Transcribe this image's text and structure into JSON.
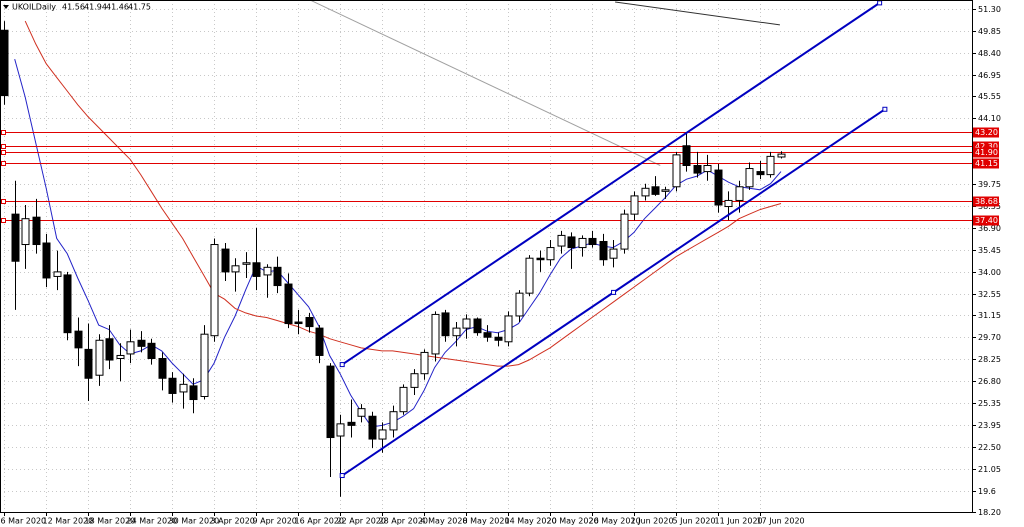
{
  "chart_data": {
    "type": "candlestick",
    "title": "UKOILDaily",
    "candles": {
      "open": [
        49.9,
        37.8,
        35.8,
        37.6,
        35.9,
        33.7,
        33.8,
        30.1,
        28.9,
        27.2,
        29.6,
        28.3,
        28.6,
        29.5,
        29.3,
        28.3,
        27.0,
        26.1,
        26.5,
        25.8,
        29.8,
        35.5,
        34.0,
        34.5,
        34.6,
        33.8,
        34.3,
        33.2,
        30.7,
        31.0,
        30.3,
        27.8,
        23.2,
        24.1,
        24.5,
        24.5,
        23.0,
        23.6,
        24.8,
        26.4,
        27.3,
        28.6,
        31.3,
        29.8,
        30.3,
        30.9,
        30.0,
        29.7,
        29.4,
        31.1,
        32.6,
        34.9,
        34.8,
        35.7,
        36.3,
        35.6,
        36.2,
        36.0,
        34.9,
        35.5,
        37.8,
        39.0,
        39.6,
        39.3,
        39.6,
        42.3,
        41.0,
        40.6,
        40.7,
        38.3,
        38.7,
        39.6,
        40.6,
        40.4,
        41.56
      ],
      "high": [
        50.5,
        40.0,
        38.4,
        38.8,
        36.5,
        35.4,
        34.0,
        31.0,
        30.6,
        29.9,
        30.5,
        29.3,
        30.2,
        30.1,
        29.6,
        28.7,
        27.4,
        27.3,
        27.0,
        30.5,
        36.2,
        35.9,
        34.9,
        35.3,
        36.9,
        34.5,
        35.0,
        33.9,
        31.5,
        31.3,
        30.5,
        28.0,
        24.6,
        25.6,
        25.3,
        24.8,
        24.1,
        25.2,
        26.6,
        27.6,
        28.9,
        31.4,
        31.5,
        30.7,
        31.2,
        31.0,
        30.5,
        30.0,
        31.4,
        32.8,
        35.1,
        35.4,
        36.1,
        36.7,
        36.6,
        36.4,
        36.7,
        36.5,
        36.1,
        38.1,
        39.3,
        39.8,
        40.3,
        39.6,
        41.9,
        43.2,
        41.9,
        41.7,
        41.1,
        39.3,
        40.0,
        41.2,
        41.3,
        41.9,
        41.94
      ],
      "low": [
        45.0,
        31.5,
        34.2,
        35.2,
        33.0,
        32.8,
        29.5,
        27.8,
        25.5,
        26.5,
        27.6,
        26.8,
        28.0,
        28.7,
        27.9,
        26.2,
        25.4,
        25.0,
        24.7,
        25.6,
        29.4,
        33.4,
        32.7,
        33.6,
        32.8,
        32.3,
        32.6,
        30.3,
        29.9,
        30.0,
        28.0,
        20.5,
        19.2,
        23.1,
        24.1,
        22.4,
        22.1,
        23.1,
        24.6,
        25.9,
        26.9,
        28.1,
        29.4,
        29.1,
        29.6,
        29.8,
        29.4,
        29.1,
        29.1,
        30.7,
        32.4,
        34.0,
        34.4,
        35.2,
        34.2,
        35.0,
        35.6,
        34.4,
        34.3,
        35.2,
        37.4,
        38.7,
        39.0,
        38.8,
        39.3,
        40.6,
        40.2,
        40.0,
        37.9,
        37.4,
        37.9,
        39.4,
        40.1,
        40.2,
        41.46
      ],
      "close": [
        45.6,
        34.7,
        37.5,
        35.8,
        33.6,
        34.0,
        30.0,
        29.0,
        27.0,
        29.5,
        28.2,
        28.5,
        29.4,
        29.1,
        28.3,
        27.0,
        26.0,
        26.6,
        25.6,
        29.9,
        35.8,
        34.0,
        34.4,
        34.6,
        33.7,
        34.3,
        33.1,
        30.6,
        30.6,
        30.4,
        28.5,
        23.1,
        24.0,
        23.9,
        25.0,
        23.0,
        23.6,
        24.8,
        26.4,
        27.3,
        28.7,
        31.2,
        29.8,
        30.3,
        30.9,
        30.0,
        29.7,
        29.5,
        31.1,
        32.6,
        34.9,
        34.8,
        35.6,
        36.4,
        35.6,
        36.2,
        35.8,
        34.8,
        35.5,
        37.8,
        39.0,
        39.5,
        39.1,
        39.4,
        41.7,
        41.0,
        40.5,
        41.0,
        38.4,
        38.7,
        39.6,
        40.8,
        40.4,
        41.6,
        41.75
      ]
    },
    "moving_averages": [
      {
        "color": "#2323c8",
        "values": [
          null,
          48,
          45.5,
          42.5,
          39.5,
          36.2,
          35.2,
          33.6,
          32.1,
          30.5,
          30.2,
          29.2,
          28.6,
          28.8,
          29.2,
          28.8,
          28.0,
          27.3,
          26.6,
          26.9,
          28.0,
          29.7,
          31.1,
          32.8,
          34.4,
          34.0,
          34.1,
          33.3,
          32.5,
          31.7,
          30.4,
          28.5,
          27.3,
          25.9,
          24.8,
          23.8,
          23.9,
          24.1,
          24.5,
          25.0,
          26.2,
          27.7,
          28.7,
          29.4,
          30.2,
          30.4,
          30.1,
          30.0,
          30.2,
          30.6,
          31.6,
          32.6,
          33.8,
          34.9,
          35.5,
          35.7,
          35.9,
          35.7,
          35.6,
          36.0,
          36.6,
          37.5,
          38.2,
          38.9,
          39.7,
          40.1,
          40.3,
          40.7,
          40.3,
          39.9,
          39.6,
          39.5,
          39.4,
          39.8,
          40.6
        ]
      },
      {
        "color": "#d03020",
        "values": [
          null,
          null,
          50.5,
          49,
          47.7,
          46.8,
          45.9,
          45,
          44.2,
          43.5,
          42.8,
          42.1,
          41.4,
          40.4,
          39.3,
          38.2,
          37.2,
          36.2,
          35,
          33.8,
          32.6,
          32.2,
          31.6,
          31.3,
          31.1,
          31.0,
          30.8,
          30.6,
          30.4,
          30.1,
          29.9,
          29.6,
          29.4,
          29.2,
          29.0,
          28.9,
          28.8,
          28.8,
          28.7,
          28.6,
          28.5,
          28.4,
          28.3,
          28.2,
          28.1,
          28.0,
          27.9,
          27.8,
          27.8,
          27.9,
          28.2,
          28.6,
          29.0,
          29.5,
          30.0,
          30.5,
          31.0,
          31.5,
          32.0,
          32.5,
          33.0,
          33.5,
          34.0,
          34.5,
          35.0,
          35.4,
          35.8,
          36.2,
          36.6,
          37.0,
          37.5,
          37.8,
          38.1,
          38.3,
          38.5
        ]
      }
    ],
    "trendlines": [
      {
        "color": "#0000c0",
        "x": [
          32.2,
          83.4
        ],
        "y": [
          27.9,
          51.7
        ]
      },
      {
        "color": "#0000c0",
        "x": [
          32.2,
          83.9
        ],
        "y": [
          20.6,
          44.7
        ]
      },
      {
        "color": "#a0a0a0",
        "x": [
          29.1,
          62.5
        ],
        "y": [
          51.9,
          41.0
        ]
      },
      {
        "color": "#303030",
        "x": [
          58.2,
          73.9
        ],
        "y": [
          51.76,
          50.25
        ]
      }
    ],
    "levels": {
      "color": "#e00000",
      "values": [
        {
          "value": 43.2,
          "label": "43.20"
        },
        {
          "value": 42.3,
          "label": "42.30"
        },
        {
          "value": 41.9,
          "label": "41.90"
        },
        41.15,
        38.68,
        {
          "value": 37.4,
          "label": "37.40"
        }
      ]
    },
    "xlim": [
      -0.4,
      92.2
    ],
    "xticks": [
      {
        "value": 0,
        "label": "6 Mar 2020"
      },
      {
        "value": 4,
        "label": "12 Mar 2020"
      },
      {
        "value": 8,
        "label": "18 Mar 2020"
      },
      {
        "value": 12,
        "label": "24 Mar 2020"
      },
      {
        "value": 16,
        "label": "30 Mar 2020"
      },
      {
        "value": 20,
        "label": "3 Apr 2020"
      },
      {
        "value": 24,
        "label": "9 Apr 2020"
      },
      {
        "value": 28,
        "label": "16 Apr 2020"
      },
      {
        "value": 32,
        "label": "22 Apr 2020"
      },
      {
        "value": 36,
        "label": "28 Apr 2020"
      },
      {
        "value": 40,
        "label": "4 May 2020"
      },
      {
        "value": 44,
        "label": "8 May 2020"
      },
      {
        "value": 48,
        "label": "14 May 2020"
      },
      {
        "value": 52,
        "label": "20 May 2020"
      },
      {
        "value": 56,
        "label": "26 May 2020"
      },
      {
        "value": 60,
        "label": "1 Jun 2020"
      },
      {
        "value": 64,
        "label": "5 Jun 2020"
      },
      {
        "value": 68,
        "label": "11 Jun 2020"
      },
      {
        "value": 72,
        "label": "17 Jun 2020"
      }
    ],
    "ylim": [
      18.2,
      51.89
    ],
    "yticks": [
      {
        "value": 51.3,
        "label": "51.30"
      },
      49.85,
      {
        "value": 48.4,
        "label": "48.40"
      },
      46.95,
      45.55,
      {
        "value": 44.1,
        "label": "44.10"
      },
      39.75,
      38.35,
      {
        "value": 36.9,
        "label": "36.90"
      },
      35.45,
      {
        "value": 34.0,
        "label": "34.00"
      },
      32.55,
      31.15,
      {
        "value": 29.7,
        "label": "29.70"
      },
      28.25,
      {
        "value": 26.8,
        "label": "26.80"
      },
      25.35,
      23.95,
      {
        "value": 22.5,
        "label": "22.50"
      },
      21.05,
      19.6,
      {
        "value": 18.2,
        "label": "18.20"
      }
    ],
    "grid": true
  }
}
